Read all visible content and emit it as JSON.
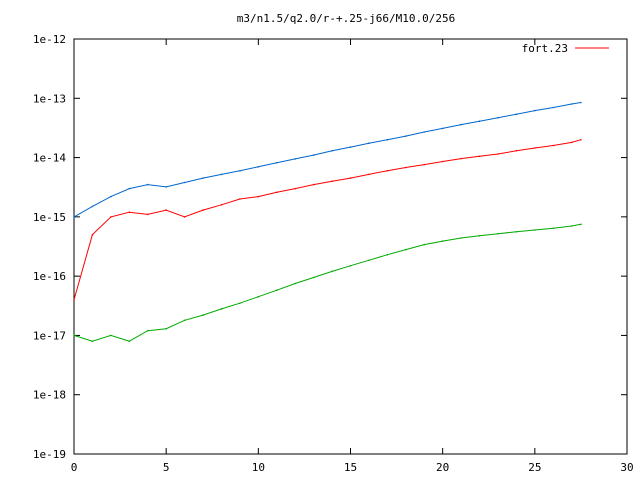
{
  "chart_data": {
    "type": "line",
    "title": "m3/n1.5/q2.0/r-+.25-j66/M10.0/256",
    "xlabel": "",
    "ylabel": "",
    "xlim": [
      0,
      30
    ],
    "ylim": [
      1e-19,
      1e-12
    ],
    "yscale": "log",
    "grid": false,
    "legend_position": "top-right",
    "x_ticks": [
      0,
      5,
      10,
      15,
      20,
      25,
      30
    ],
    "x_tick_labels": [
      "0",
      "5",
      "10",
      "15",
      "20",
      "25",
      "30"
    ],
    "y_ticks": [
      1e-19,
      1e-18,
      1e-17,
      1e-16,
      1e-15,
      1e-14,
      1e-13,
      1e-12
    ],
    "y_tick_labels": [
      "1e-19",
      "1e-18",
      "1e-17",
      "1e-16",
      "1e-15",
      "1e-14",
      "1e-13",
      "1e-12"
    ],
    "series": [
      {
        "name": "fort.23",
        "color": "#ff0000",
        "x": [
          0,
          1,
          2,
          3,
          4,
          5,
          6,
          7,
          8,
          9,
          10,
          11,
          12,
          13,
          14,
          15,
          16,
          17,
          18,
          19,
          20,
          21,
          22,
          23,
          24,
          25,
          26,
          27,
          27.5
        ],
        "y": [
          4e-17,
          5e-16,
          1e-15,
          1.2e-15,
          1.1e-15,
          1.3e-15,
          1e-15,
          1.3e-15,
          1.6e-15,
          2e-15,
          2.2e-15,
          2.6e-15,
          3e-15,
          3.5e-15,
          4e-15,
          4.5e-15,
          5.2e-15,
          6e-15,
          6.8e-15,
          7.6e-15,
          8.6e-15,
          9.6e-15,
          1.05e-14,
          1.15e-14,
          1.3e-14,
          1.45e-14,
          1.6e-14,
          1.8e-14,
          2e-14
        ]
      },
      {
        "name": "",
        "color": "#0066cc",
        "x": [
          0,
          1,
          2,
          3,
          4,
          5,
          6,
          7,
          8,
          9,
          10,
          11,
          12,
          13,
          14,
          15,
          16,
          17,
          18,
          19,
          20,
          21,
          22,
          23,
          24,
          25,
          26,
          27,
          27.5
        ],
        "y": [
          1e-15,
          1.5e-15,
          2.2e-15,
          3e-15,
          3.5e-15,
          3.2e-15,
          3.8e-15,
          4.5e-15,
          5.2e-15,
          6e-15,
          7e-15,
          8.2e-15,
          9.5e-15,
          1.1e-14,
          1.3e-14,
          1.5e-14,
          1.75e-14,
          2e-14,
          2.3e-14,
          2.7e-14,
          3.1e-14,
          3.6e-14,
          4.1e-14,
          4.7e-14,
          5.4e-14,
          6.2e-14,
          7e-14,
          8e-14,
          8.5e-14
        ]
      },
      {
        "name": "",
        "color": "#00aa00",
        "x": [
          0,
          1,
          2,
          3,
          4,
          5,
          6,
          7,
          8,
          9,
          10,
          11,
          12,
          13,
          14,
          15,
          16,
          17,
          18,
          19,
          20,
          21,
          22,
          23,
          24,
          25,
          26,
          27,
          27.5
        ],
        "y": [
          1e-17,
          8e-18,
          1e-17,
          8e-18,
          1.2e-17,
          1.3e-17,
          1.8e-17,
          2.2e-17,
          2.8e-17,
          3.5e-17,
          4.5e-17,
          5.8e-17,
          7.5e-17,
          9.5e-17,
          1.2e-16,
          1.5e-16,
          1.85e-16,
          2.3e-16,
          2.8e-16,
          3.4e-16,
          3.9e-16,
          4.4e-16,
          4.8e-16,
          5.2e-16,
          5.6e-16,
          6e-16,
          6.4e-16,
          7e-16,
          7.5e-16
        ]
      }
    ]
  }
}
